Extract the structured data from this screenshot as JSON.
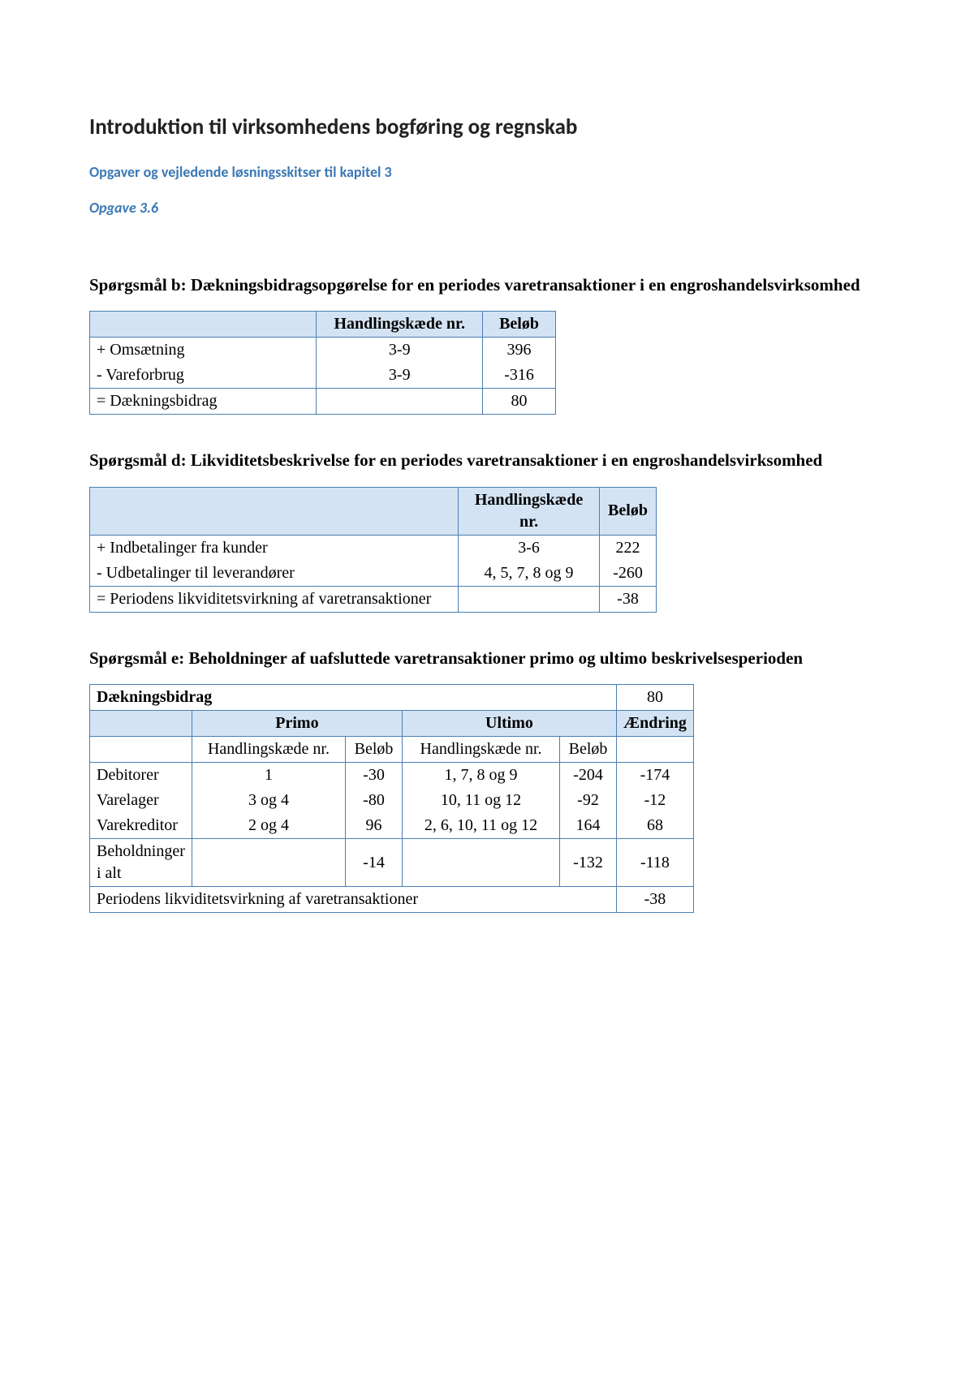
{
  "main_title": "Introduktion til virksomhedens bogføring og regnskab",
  "subtitle": "Opgaver og vejledende løsningsskitser til kapitel 3",
  "exercise": "Opgave 3.6",
  "colors": {
    "accent": "#3b78b5",
    "table_border": "#4a7fb3",
    "header_bg": "#d4e3f3",
    "background": "#ffffff",
    "text": "#000000"
  },
  "section_b": {
    "heading": "Spørgsmål b: Dækningsbidragsopgørelse for en periodes varetransaktioner i en engroshandelsvirksomhed",
    "columns": [
      "",
      "Handlingskæde nr.",
      "Beløb"
    ],
    "rows": [
      {
        "label": "+ Omsætning",
        "chain": "3-9",
        "amount": "396"
      },
      {
        "label": "- Vareforbrug",
        "chain": "3-9",
        "amount": "-316"
      }
    ],
    "sum": {
      "label": "= Dækningsbidrag",
      "chain": "",
      "amount": "80"
    }
  },
  "section_d": {
    "heading": "Spørgsmål d: Likviditetsbeskrivelse for en periodes varetransaktioner i en engroshandelsvirksomhed",
    "columns": [
      "",
      "Handlingskæde nr.",
      "Beløb"
    ],
    "rows": [
      {
        "label": "+ Indbetalinger fra kunder",
        "chain": "3-6",
        "amount": "222"
      },
      {
        "label": "- Udbetalinger til leverandører",
        "chain": "4, 5, 7, 8 og 9",
        "amount": "-260"
      }
    ],
    "sum": {
      "label": "= Periodens likviditetsvirkning af varetransaktioner",
      "chain": "",
      "amount": "-38"
    }
  },
  "section_e": {
    "heading": "Spørgsmål e: Beholdninger af uafsluttede varetransaktioner primo og ultimo beskrivelsesperioden",
    "top_row": {
      "label": "Dækningsbidrag",
      "amount": "80"
    },
    "group_headers": {
      "primo": "Primo",
      "ultimo": "Ultimo",
      "change": "Ændring"
    },
    "sub_headers": {
      "chain": "Handlingskæde nr.",
      "amount": "Beløb"
    },
    "rows": [
      {
        "label": "Debitorer",
        "primo_chain": "1",
        "primo_amount": "-30",
        "ultimo_chain": "1, 7, 8 og 9",
        "ultimo_amount": "-204",
        "change": "-174"
      },
      {
        "label": "Varelager",
        "primo_chain": "3 og 4",
        "primo_amount": "-80",
        "ultimo_chain": "10, 11 og 12",
        "ultimo_amount": "-92",
        "change": "-12"
      },
      {
        "label": "Varekreditor",
        "primo_chain": "2 og 4",
        "primo_amount": "96",
        "ultimo_chain": "2, 6, 10, 11 og 12",
        "ultimo_amount": "164",
        "change": "68"
      }
    ],
    "sum_inventory": {
      "label": "Beholdninger i alt",
      "primo_amount": "-14",
      "ultimo_amount": "-132",
      "change": "-118"
    },
    "final": {
      "label": "Periodens likviditetsvirkning af varetransaktioner",
      "amount": "-38"
    }
  }
}
